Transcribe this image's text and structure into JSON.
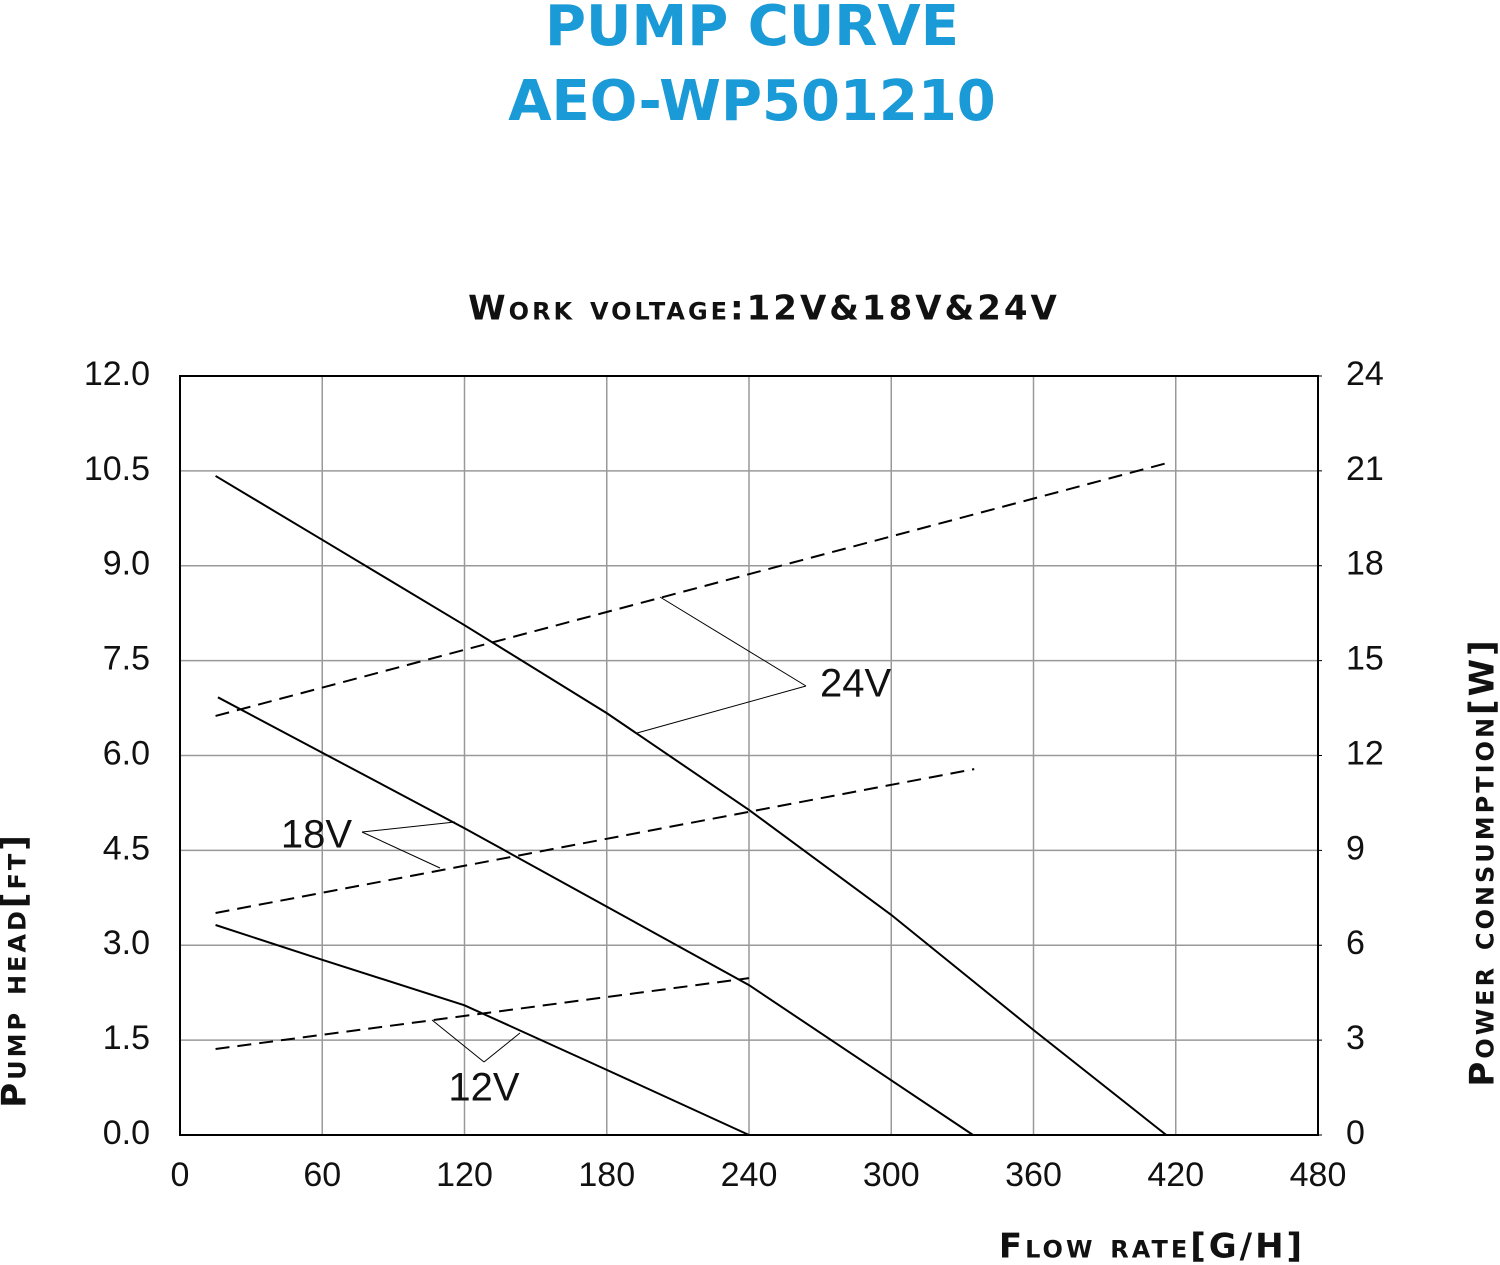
{
  "chart_data": {
    "type": "line",
    "title": [
      "PUMP CURVE",
      "AEO-WP501210"
    ],
    "subtitle": "Work voltage:12V&18V&24V",
    "x_label": "Flow rate[G/H]",
    "y_label": "Pump head[ft]",
    "y2_label": "Power consumption[W]",
    "xlim": [
      0,
      480
    ],
    "xticks": [
      0,
      60,
      120,
      180,
      240,
      300,
      360,
      420,
      480
    ],
    "ylim": [
      0,
      12
    ],
    "yticks": [
      {
        "value": 0,
        "label": "0.0"
      },
      1.5,
      {
        "value": 3,
        "label": "3.0"
      },
      4.5,
      {
        "value": 6,
        "label": "6.0"
      },
      7.5,
      {
        "value": 9,
        "label": "9.0"
      },
      10.5,
      {
        "value": 12,
        "label": "12.0"
      }
    ],
    "y2lim": [
      0,
      24
    ],
    "y2ticks": [
      0,
      3,
      6,
      9,
      12,
      15,
      18,
      21,
      24
    ],
    "grid": true,
    "series": [
      {
        "color": "#000000",
        "line_style": "solid",
        "x": [
          15,
          60,
          120,
          180,
          240,
          300,
          360,
          416
        ],
        "values": [
          10.42,
          9.41,
          8.06,
          6.67,
          5.14,
          3.48,
          1.66,
          0
        ]
      },
      {
        "color": "#000000",
        "line_style": "dashed",
        "axis": "y2",
        "x": [
          15,
          418
        ],
        "values": [
          13.25,
          21.28
        ]
      },
      {
        "color": "#000000",
        "line_style": "solid",
        "x": [
          16,
          120,
          240,
          334.5
        ],
        "values": [
          6.92,
          4.85,
          2.37,
          0
        ]
      },
      {
        "color": "#000000",
        "line_style": "dashed",
        "axis": "y2",
        "x": [
          15,
          335
        ],
        "values": [
          7.02,
          11.57
        ]
      },
      {
        "color": "#000000",
        "line_style": "solid",
        "x": [
          15,
          60,
          120,
          180,
          240
        ],
        "values": [
          3.32,
          2.77,
          2.05,
          1.03,
          0
        ]
      },
      {
        "color": "#000000",
        "line_style": "dashed",
        "axis": "y2",
        "x": [
          15,
          240
        ],
        "values": [
          2.72,
          4.96
        ]
      }
    ],
    "annotations": [
      "24V",
      "18V",
      "12V"
    ]
  }
}
